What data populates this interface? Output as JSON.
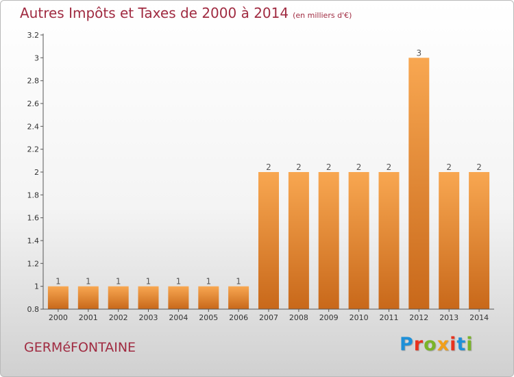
{
  "header": {
    "title": "Autres Impôts et Taxes de 2000 à 2014",
    "unit": "(en milliers d'€)"
  },
  "footer": {
    "place_name": "GERMéFONTAINE",
    "logo_text": "Proxiti",
    "logo_colors": [
      "#1e90d8",
      "#e8321e",
      "#7ab428",
      "#f2a01a",
      "#e8321e",
      "#1e90d8",
      "#7ab428"
    ]
  },
  "colors": {
    "bar_top": "#f8a751",
    "bar_bottom": "#c8681a",
    "title": "#a02b41",
    "axis": "#555555",
    "grid": "#cccccc"
  },
  "chart_data": {
    "type": "bar",
    "categories": [
      "2000",
      "2001",
      "2002",
      "2003",
      "2004",
      "2005",
      "2006",
      "2007",
      "2008",
      "2009",
      "2010",
      "2011",
      "2012",
      "2013",
      "2014"
    ],
    "values": [
      1,
      1,
      1,
      1,
      1,
      1,
      1,
      2,
      2,
      2,
      2,
      2,
      3,
      2,
      2
    ],
    "data_labels": [
      "1",
      "1",
      "1",
      "1",
      "1",
      "1",
      "1",
      "2",
      "2",
      "2",
      "2",
      "2",
      "3",
      "2",
      "2"
    ],
    "y_ticks": [
      "0.8",
      "1",
      "1.2",
      "1.4",
      "1.6",
      "1.8",
      "2",
      "2.2",
      "2.4",
      "2.6",
      "2.8",
      "3",
      "3.2"
    ],
    "ylim": [
      0.8,
      3.2
    ],
    "grid": false,
    "legend": "none"
  }
}
